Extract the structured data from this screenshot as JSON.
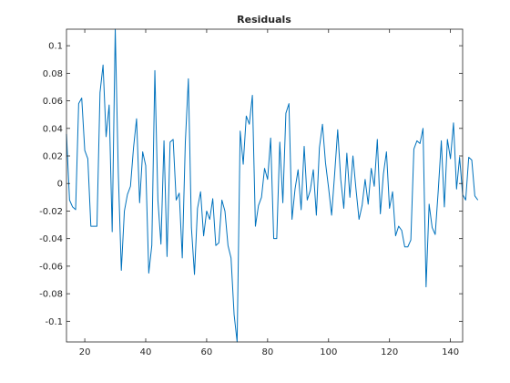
{
  "chart_data": {
    "type": "line",
    "title": "Residuals",
    "xlabel": "",
    "ylabel": "",
    "xlim": [
      14,
      144
    ],
    "ylim": [
      -0.115,
      0.112
    ],
    "grid": false,
    "legend": "none",
    "line_color": "#0072bd",
    "x_ticks": [
      20,
      40,
      60,
      80,
      100,
      120,
      140
    ],
    "y_ticks": [
      -0.1,
      -0.08,
      -0.06,
      -0.04,
      -0.02,
      0,
      0.02,
      0.04,
      0.06,
      0.08,
      0.1
    ],
    "y_tick_labels": [
      "-0.1",
      "-0.08",
      "-0.06",
      "-0.04",
      "-0.02",
      "0",
      "0.02",
      "0.04",
      "0.06",
      "0.08",
      "0.1"
    ],
    "x_tick_labels": [
      "20",
      "40",
      "60",
      "80",
      "100",
      "120",
      "140"
    ],
    "series": [
      {
        "x_start": 14,
        "x_step": 1,
        "values": [
          0.036,
          -0.012,
          -0.017,
          -0.019,
          0.058,
          0.062,
          0.024,
          0.018,
          -0.031,
          -0.031,
          -0.031,
          0.066,
          0.086,
          0.034,
          0.057,
          -0.035,
          0.115,
          0.008,
          -0.063,
          -0.02,
          -0.008,
          -0.002,
          0.026,
          0.047,
          -0.014,
          0.023,
          0.013,
          -0.065,
          -0.045,
          0.082,
          -0.012,
          -0.044,
          0.031,
          -0.053,
          0.03,
          0.032,
          -0.012,
          -0.007,
          -0.054,
          0.03,
          0.076,
          -0.032,
          -0.066,
          -0.018,
          -0.006,
          -0.038,
          -0.02,
          -0.026,
          -0.011,
          -0.045,
          -0.043,
          -0.012,
          -0.02,
          -0.045,
          -0.054,
          -0.095,
          -0.115,
          0.038,
          0.014,
          0.049,
          0.043,
          0.064,
          -0.031,
          -0.016,
          -0.01,
          0.011,
          0.003,
          0.033,
          -0.04,
          -0.04,
          0.03,
          -0.014,
          0.051,
          0.058,
          -0.026,
          -0.004,
          0.01,
          -0.019,
          0.027,
          -0.012,
          -0.005,
          0.01,
          -0.023,
          0.026,
          0.043,
          0.015,
          -0.003,
          -0.023,
          0.007,
          0.039,
          0.003,
          -0.018,
          0.022,
          -0.01,
          0.02,
          -0.004,
          -0.026,
          -0.016,
          0.003,
          -0.015,
          0.011,
          -0.002,
          0.032,
          -0.022,
          0.007,
          0.023,
          -0.018,
          -0.006,
          -0.038,
          -0.031,
          -0.034,
          -0.046,
          -0.046,
          -0.041,
          0.025,
          0.031,
          0.029,
          0.04,
          -0.075,
          -0.015,
          -0.032,
          -0.037,
          -0.005,
          0.031,
          -0.017,
          0.032,
          0.018,
          0.044,
          -0.004,
          0.019,
          -0.008,
          -0.012,
          0.019,
          0.017,
          -0.009,
          -0.012
        ]
      }
    ]
  }
}
